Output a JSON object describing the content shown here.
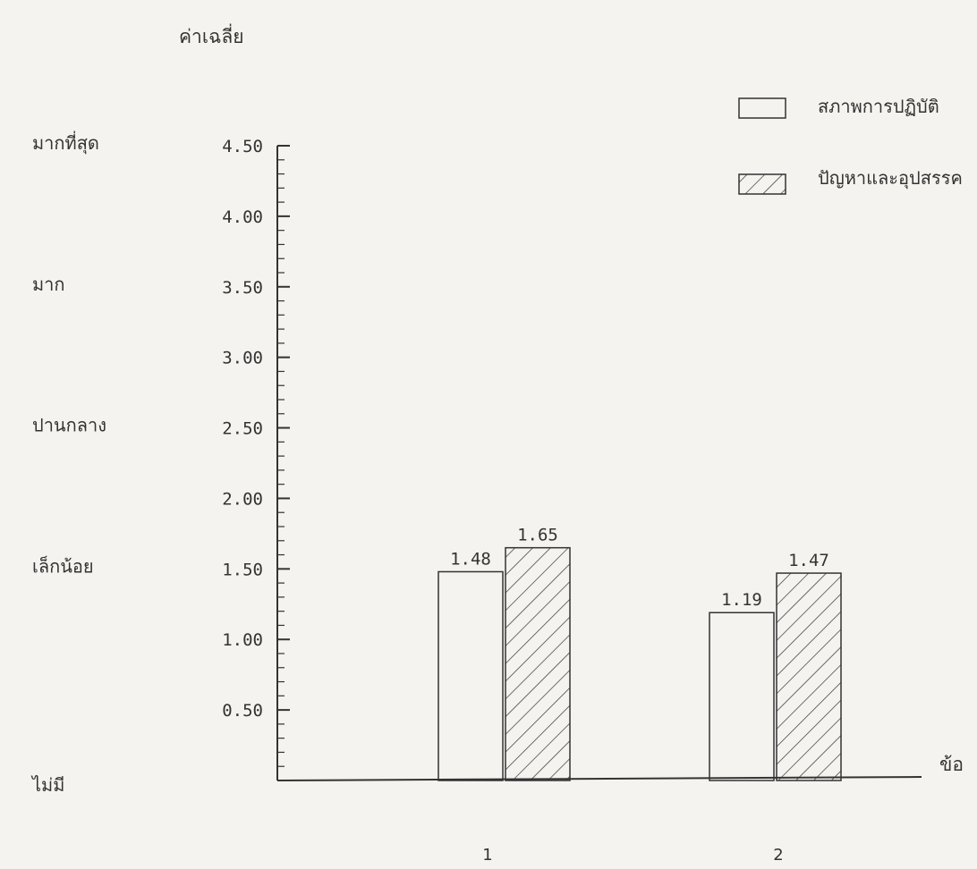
{
  "chart_data": {
    "type": "bar",
    "ylabel": "ค่าเฉลี่ย",
    "xlabel": "ข้อ",
    "categories": [
      "1",
      "2"
    ],
    "series": [
      {
        "name": "สภาพการปฏิบัติ",
        "values": [
          1.48,
          1.19
        ],
        "pattern": "empty"
      },
      {
        "name": "ปัญหาและอุปสรรค",
        "values": [
          1.65,
          1.47
        ],
        "pattern": "hatched"
      }
    ],
    "data_labels": [
      [
        "1.48",
        "1.19"
      ],
      [
        "1.65",
        "1.47"
      ]
    ],
    "ylim": [
      0,
      4.5
    ],
    "yticks": [
      {
        "value": 0.5,
        "label": "0.50"
      },
      {
        "value": 1.0,
        "label": "1.00"
      },
      {
        "value": 1.5,
        "label": "1.50"
      },
      {
        "value": 2.0,
        "label": "2.00"
      },
      {
        "value": 2.5,
        "label": "2.50"
      },
      {
        "value": 3.0,
        "label": "3.00"
      },
      {
        "value": 3.5,
        "label": "3.50"
      },
      {
        "value": 4.0,
        "label": "4.00"
      },
      {
        "value": 4.5,
        "label": "4.50"
      }
    ],
    "level_labels": [
      {
        "value": 4.5,
        "label": "มากที่สุด"
      },
      {
        "value": 3.5,
        "label": "มาก"
      },
      {
        "value": 2.5,
        "label": "ปานกลาง"
      },
      {
        "value": 1.5,
        "label": "เล็กน้อย"
      },
      {
        "value": 0,
        "label": "ไม่มี"
      }
    ],
    "legend_position": "top-right",
    "grid": false,
    "colors": {
      "ink": "#333333",
      "paper": "#f4f3ef"
    }
  }
}
